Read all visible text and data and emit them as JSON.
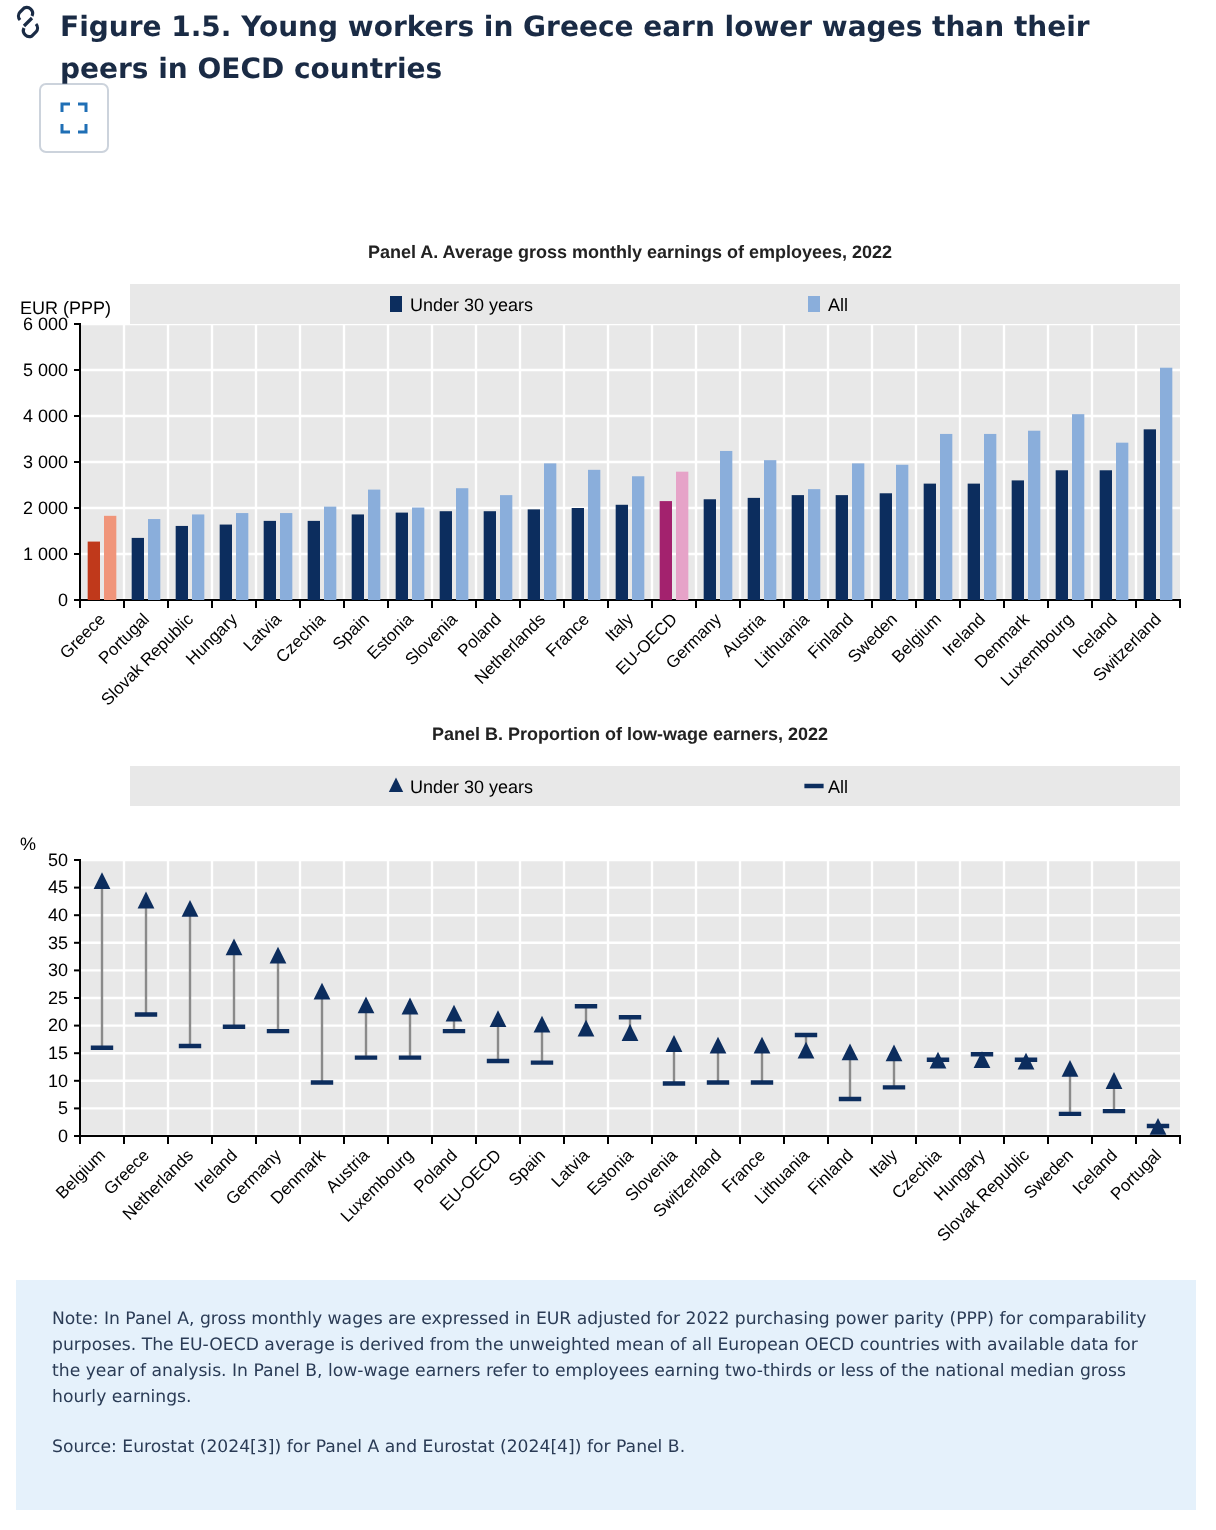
{
  "chart_data": [
    {
      "type": "bar",
      "title": "Figure 1.5. Young workers in Greece earn lower wages than their peers in OECD countries",
      "subtitle": "Panel A. Average gross monthly earnings of employees, 2022",
      "ylabel": "EUR (PPP)",
      "categories": [
        "Greece",
        "Portugal",
        "Slovak Republic",
        "Hungary",
        "Latvia",
        "Czechia",
        "Spain",
        "Estonia",
        "Slovenia",
        "Poland",
        "Netherlands",
        "France",
        "Italy",
        "EU-OECD",
        "Germany",
        "Austria",
        "Lithuania",
        "Finland",
        "Sweden",
        "Belgium",
        "Ireland",
        "Denmark",
        "Luxembourg",
        "Iceland",
        "Switzerland"
      ],
      "series": [
        {
          "name": "Under 30 years",
          "color": "#0c2d5e",
          "colors": [
            "#c0391b",
            "#0c2d5e",
            "#0c2d5e",
            "#0c2d5e",
            "#0c2d5e",
            "#0c2d5e",
            "#0c2d5e",
            "#0c2d5e",
            "#0c2d5e",
            "#0c2d5e",
            "#0c2d5e",
            "#0c2d5e",
            "#0c2d5e",
            "#a3226e",
            "#0c2d5e",
            "#0c2d5e",
            "#0c2d5e",
            "#0c2d5e",
            "#0c2d5e",
            "#0c2d5e",
            "#0c2d5e",
            "#0c2d5e",
            "#0c2d5e",
            "#0c2d5e",
            "#0c2d5e"
          ],
          "values": [
            1270,
            1350,
            1610,
            1640,
            1720,
            1720,
            1860,
            1900,
            1930,
            1930,
            1970,
            2000,
            2070,
            2150,
            2190,
            2220,
            2280,
            2280,
            2320,
            2530,
            2530,
            2600,
            2820,
            2820,
            3710
          ]
        },
        {
          "name": "All",
          "color": "#8aaedb",
          "colors": [
            "#f0957a",
            "#8aaedb",
            "#8aaedb",
            "#8aaedb",
            "#8aaedb",
            "#8aaedb",
            "#8aaedb",
            "#8aaedb",
            "#8aaedb",
            "#8aaedb",
            "#8aaedb",
            "#8aaedb",
            "#8aaedb",
            "#e6a3c8",
            "#8aaedb",
            "#8aaedb",
            "#8aaedb",
            "#8aaedb",
            "#8aaedb",
            "#8aaedb",
            "#8aaedb",
            "#8aaedb",
            "#8aaedb",
            "#8aaedb",
            "#8aaedb"
          ],
          "values": [
            1830,
            1760,
            1860,
            1890,
            1890,
            2030,
            2400,
            2010,
            2430,
            2280,
            2970,
            2830,
            2690,
            2790,
            3240,
            3040,
            2410,
            2970,
            2940,
            3610,
            3610,
            3680,
            4040,
            3420,
            5050
          ]
        }
      ],
      "ylim": [
        0,
        6000
      ],
      "yticks": [
        0,
        {
          "value": 1000,
          "label": "1 000"
        },
        {
          "value": 2000,
          "label": "2 000"
        },
        {
          "value": 3000,
          "label": "3 000"
        },
        {
          "value": 4000,
          "label": "4 000"
        },
        {
          "value": 5000,
          "label": "5 000"
        },
        {
          "value": 6000,
          "label": "6 000"
        }
      ],
      "grid": true,
      "legend": "top"
    },
    {
      "type": "scatter",
      "title": "Panel B. Proportion of low-wage earners, 2022",
      "ylabel": "%",
      "categories": [
        "Belgium",
        "Greece",
        "Netherlands",
        "Ireland",
        "Germany",
        "Denmark",
        "Austria",
        "Luxembourg",
        "Poland",
        "EU-OECD",
        "Spain",
        "Latvia",
        "Estonia",
        "Slovenia",
        "Switzerland",
        "France",
        "Lithuania",
        "Finland",
        "Italy",
        "Czechia",
        "Hungary",
        "Slovak Republic",
        "Sweden",
        "Iceland",
        "Portugal"
      ],
      "series": [
        {
          "name": "Under 30 years",
          "color": "#0c2d5e",
          "marker": "triangle",
          "values": [
            46,
            42.5,
            41,
            34,
            32.5,
            26,
            23.5,
            23.3,
            22,
            21,
            20,
            19.3,
            18.5,
            16.5,
            16.2,
            16.2,
            15.3,
            15,
            14.8,
            13.5,
            13.6,
            13.3,
            12,
            9.8,
            1.5
          ]
        },
        {
          "name": "All",
          "color": "#0c2d5e",
          "values": [
            16,
            22,
            16.3,
            19.8,
            19,
            9.7,
            14.2,
            14.2,
            19,
            13.6,
            13.3,
            23.5,
            21.5,
            9.5,
            9.7,
            9.7,
            18.3,
            6.7,
            8.8,
            13.8,
            14.8,
            13.8,
            4,
            4.5,
            1.8
          ]
        }
      ],
      "ylim": [
        0,
        50
      ],
      "yticks": [
        0,
        5,
        10,
        15,
        20,
        25,
        30,
        35,
        40,
        45,
        50
      ],
      "grid": true,
      "legend": "top",
      "annotations": [
        "Note: In Panel A, gross monthly wages are expressed in EUR adjusted for 2022 purchasing power parity (PPP) for comparability purposes. The EU-OECD average is derived from the unweighted mean of all European OECD countries with available data for the year of analysis. In Panel B, low-wage earners refer to employees earning two-thirds or less of the national median gross hourly earnings.",
        "Source: Eurostat (2024[3]) for Panel A and Eurostat (2024[4]) for Panel B."
      ]
    }
  ]
}
